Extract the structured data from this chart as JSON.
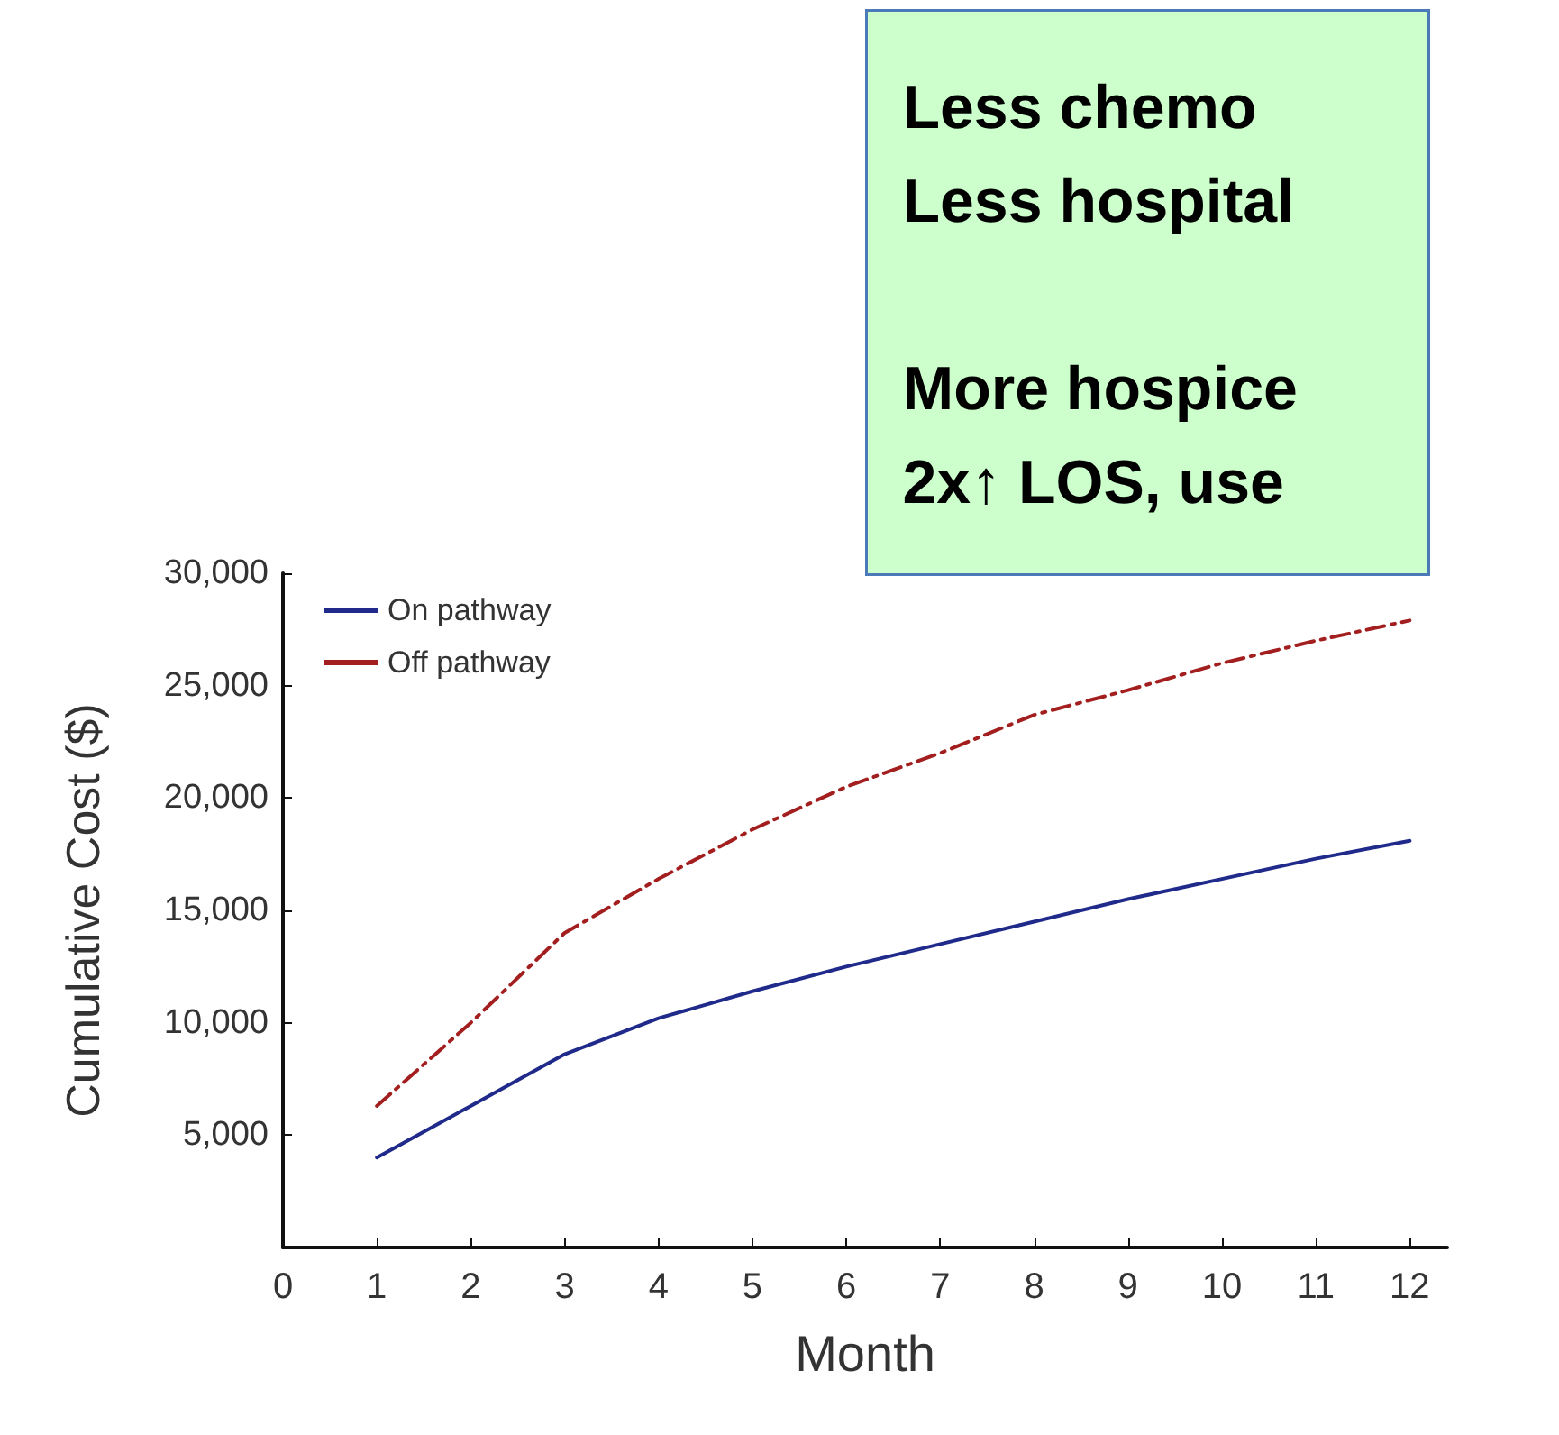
{
  "chart_data": {
    "type": "line",
    "xlabel": "Month",
    "ylabel": "Cumulative Cost ($)",
    "x": [
      1,
      2,
      3,
      4,
      5,
      6,
      7,
      8,
      9,
      10,
      11,
      12
    ],
    "series": [
      {
        "name": "On pathway",
        "color": "#1f2a8a",
        "line_style": "solid",
        "values": [
          4000,
          6300,
          8600,
          10200,
          11400,
          12500,
          13500,
          14500,
          15500,
          16400,
          17300,
          18100
        ]
      },
      {
        "name": "Off pathway",
        "color": "#a31f1f",
        "line_style": "dashed",
        "values": [
          6300,
          10000,
          14000,
          16400,
          18600,
          20500,
          22000,
          23700,
          24800,
          26000,
          27000,
          27900
        ]
      }
    ],
    "xlim": [
      0,
      12.4
    ],
    "xticks": [
      0,
      1,
      2,
      3,
      4,
      5,
      6,
      7,
      8,
      9,
      10,
      11,
      12
    ],
    "ylim": [
      0,
      30000
    ],
    "yticks": [
      {
        "value": 0,
        "label": null
      },
      {
        "value": 5000,
        "label": "5,000"
      },
      {
        "value": 10000,
        "label": "10,000"
      },
      {
        "value": 15000,
        "label": "15,000"
      },
      {
        "value": 20000,
        "label": "20,000"
      },
      {
        "value": 25000,
        "label": "25,000"
      },
      {
        "value": 30000,
        "label": "30,000"
      }
    ],
    "grid": false,
    "legend": "top left",
    "marker": "none",
    "annotations": [
      "Less chemo\nLess hospital\n\nMore hospice\n2x↑ LOS, use"
    ]
  }
}
